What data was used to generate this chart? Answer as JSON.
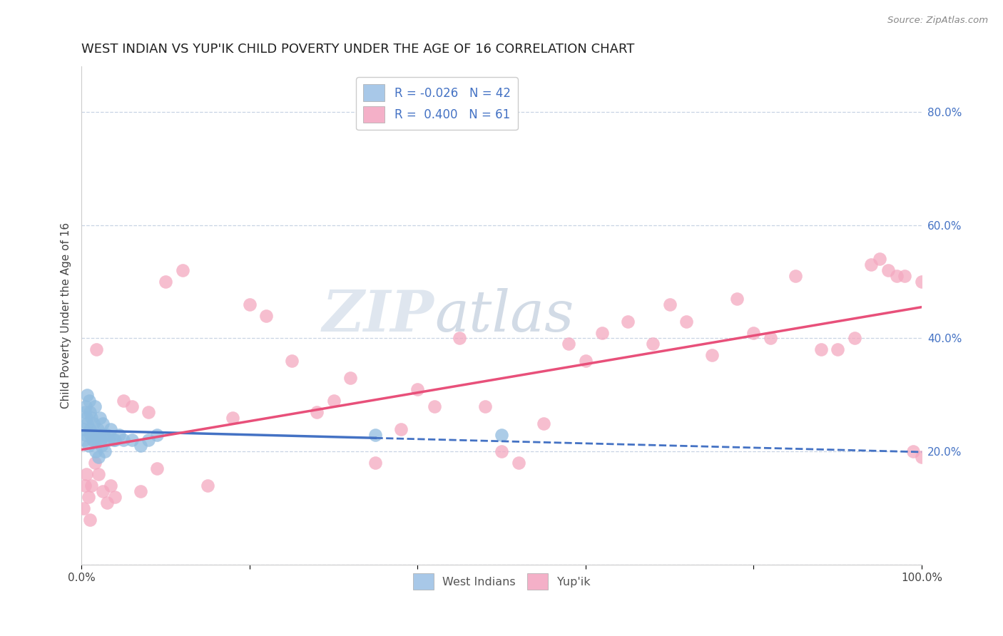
{
  "title": "WEST INDIAN VS YUP'IK CHILD POVERTY UNDER THE AGE OF 16 CORRELATION CHART",
  "source": "Source: ZipAtlas.com",
  "ylabel": "Child Poverty Under the Age of 16",
  "xlim": [
    0,
    1.0
  ],
  "ylim": [
    0.0,
    0.88
  ],
  "ytick_labels": [
    "20.0%",
    "40.0%",
    "60.0%",
    "80.0%"
  ],
  "ytick_values": [
    0.2,
    0.4,
    0.6,
    0.8
  ],
  "grid_yticks": [
    0.0,
    0.2,
    0.4,
    0.6,
    0.8
  ],
  "legend_entries": [
    {
      "label": "R = -0.026   N = 42",
      "color": "#a8c8e8"
    },
    {
      "label": "R =  0.400   N = 61",
      "color": "#f4b0c8"
    }
  ],
  "legend_bottom": [
    "West Indians",
    "Yup'ik"
  ],
  "west_indians_x": [
    0.002,
    0.003,
    0.004,
    0.005,
    0.005,
    0.006,
    0.007,
    0.007,
    0.008,
    0.009,
    0.01,
    0.01,
    0.011,
    0.012,
    0.013,
    0.014,
    0.015,
    0.016,
    0.017,
    0.018,
    0.019,
    0.02,
    0.021,
    0.022,
    0.023,
    0.024,
    0.025,
    0.026,
    0.028,
    0.03,
    0.032,
    0.035,
    0.038,
    0.04,
    0.045,
    0.05,
    0.06,
    0.07,
    0.08,
    0.09,
    0.35,
    0.5
  ],
  "west_indians_y": [
    0.24,
    0.22,
    0.27,
    0.23,
    0.28,
    0.26,
    0.3,
    0.25,
    0.21,
    0.29,
    0.24,
    0.27,
    0.23,
    0.26,
    0.22,
    0.25,
    0.23,
    0.28,
    0.2,
    0.22,
    0.24,
    0.19,
    0.23,
    0.26,
    0.22,
    0.21,
    0.25,
    0.23,
    0.2,
    0.23,
    0.22,
    0.24,
    0.22,
    0.22,
    0.23,
    0.22,
    0.22,
    0.21,
    0.22,
    0.23,
    0.23,
    0.23
  ],
  "yupik_x": [
    0.002,
    0.004,
    0.006,
    0.008,
    0.01,
    0.012,
    0.014,
    0.016,
    0.018,
    0.02,
    0.025,
    0.03,
    0.035,
    0.04,
    0.05,
    0.06,
    0.07,
    0.08,
    0.09,
    0.1,
    0.12,
    0.15,
    0.18,
    0.2,
    0.22,
    0.25,
    0.28,
    0.3,
    0.32,
    0.35,
    0.38,
    0.4,
    0.42,
    0.45,
    0.48,
    0.5,
    0.52,
    0.55,
    0.58,
    0.6,
    0.62,
    0.65,
    0.68,
    0.7,
    0.72,
    0.75,
    0.78,
    0.8,
    0.82,
    0.85,
    0.88,
    0.9,
    0.92,
    0.94,
    0.95,
    0.96,
    0.97,
    0.98,
    0.99,
    1.0,
    1.0
  ],
  "yupik_y": [
    0.1,
    0.14,
    0.16,
    0.12,
    0.08,
    0.14,
    0.22,
    0.18,
    0.38,
    0.16,
    0.13,
    0.11,
    0.14,
    0.12,
    0.29,
    0.28,
    0.13,
    0.27,
    0.17,
    0.5,
    0.52,
    0.14,
    0.26,
    0.46,
    0.44,
    0.36,
    0.27,
    0.29,
    0.33,
    0.18,
    0.24,
    0.31,
    0.28,
    0.4,
    0.28,
    0.2,
    0.18,
    0.25,
    0.39,
    0.36,
    0.41,
    0.43,
    0.39,
    0.46,
    0.43,
    0.37,
    0.47,
    0.41,
    0.4,
    0.51,
    0.38,
    0.38,
    0.4,
    0.53,
    0.54,
    0.52,
    0.51,
    0.51,
    0.2,
    0.19,
    0.5
  ],
  "blue_scatter_color": "#90bce0",
  "pink_scatter_color": "#f4a8c0",
  "blue_line_color": "#4472C4",
  "pink_line_color": "#E8507A",
  "blue_line_solid_end": 0.35,
  "background_color": "#ffffff",
  "grid_color": "#c8d4e4",
  "title_fontsize": 13,
  "axis_label_fontsize": 11,
  "tick_fontsize": 11,
  "watermark_zip": "ZIP",
  "watermark_atlas": "atlas",
  "source_text": "Source: ZipAtlas.com"
}
